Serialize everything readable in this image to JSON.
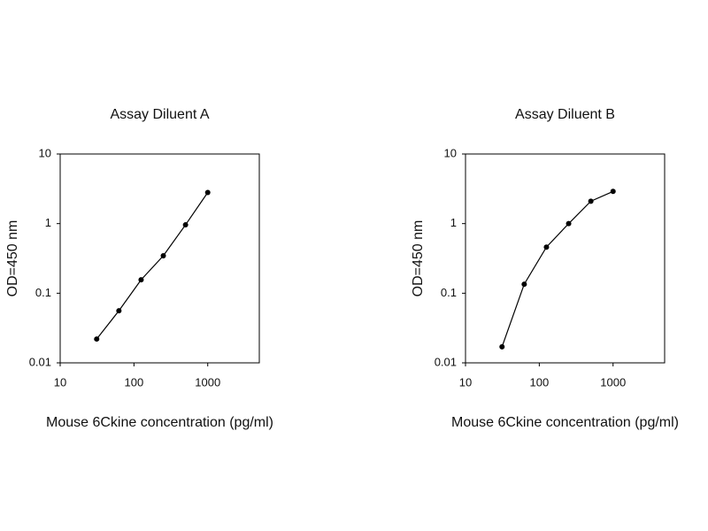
{
  "chart_data": [
    {
      "type": "line",
      "title": "Assay Diluent A",
      "x_label": "Mouse 6Ckine concentration (pg/ml)",
      "y_label": "OD=450 nm",
      "x": [
        31.25,
        62.5,
        125,
        250,
        500,
        1000
      ],
      "series": [
        {
          "color": "#000000",
          "values": [
            0.022,
            0.056,
            0.156,
            0.345,
            0.96,
            2.8
          ]
        }
      ],
      "xscale": "log",
      "yscale": "log",
      "xlim": [
        10,
        5000
      ],
      "ylim": [
        0.01,
        10
      ],
      "xticks": [
        10,
        100,
        1000
      ],
      "yticks": [
        0.01,
        0.1,
        1,
        10
      ],
      "markers": true
    },
    {
      "type": "line",
      "title": "Assay Diluent B",
      "x_label": "Mouse 6Ckine concentration (pg/ml)",
      "y_label": "OD=450 nm",
      "x": [
        31.25,
        62.5,
        125,
        250,
        500,
        1000
      ],
      "series": [
        {
          "color": "#000000",
          "values": [
            0.017,
            0.135,
            0.46,
            1.0,
            2.1,
            2.9
          ]
        }
      ],
      "xscale": "log",
      "yscale": "log",
      "xlim": [
        10,
        5000
      ],
      "ylim": [
        0.01,
        10
      ],
      "xticks": [
        10,
        100,
        1000
      ],
      "yticks": [
        0.01,
        0.1,
        1,
        10
      ],
      "markers": true
    }
  ]
}
